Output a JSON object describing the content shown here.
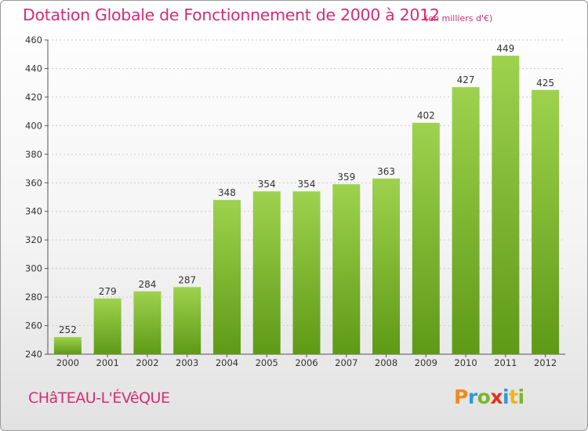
{
  "header": {
    "title": "Dotation Globale de Fonctionnement de 2000 à 2012",
    "subtitle": "(en milliers d'€)"
  },
  "footer": {
    "commune": "CHâTEAU-L'ÉVêQUE",
    "logo_letters": [
      "P",
      "r",
      "o",
      "x",
      "i",
      "t",
      "i"
    ]
  },
  "colors": {
    "title": "#d42d73",
    "bar_top": "#9ed24e",
    "bar_bottom": "#5e9a16",
    "grid": "#cccccc",
    "axis": "#555555"
  },
  "chart_data": {
    "type": "bar",
    "title": "Dotation Globale de Fonctionnement de 2000 à 2012",
    "subtitle": "(en milliers d'€)",
    "categories": [
      "2000",
      "2001",
      "2002",
      "2003",
      "2004",
      "2005",
      "2006",
      "2007",
      "2008",
      "2009",
      "2010",
      "2011",
      "2012"
    ],
    "values": [
      252,
      279,
      284,
      287,
      348,
      354,
      354,
      359,
      363,
      402,
      427,
      449,
      425
    ],
    "ylim": [
      240,
      460
    ],
    "yticks": [
      240,
      260,
      280,
      300,
      320,
      340,
      360,
      380,
      400,
      420,
      440,
      460
    ],
    "grid": true,
    "data_labels": true,
    "xlabel": "",
    "ylabel": ""
  }
}
